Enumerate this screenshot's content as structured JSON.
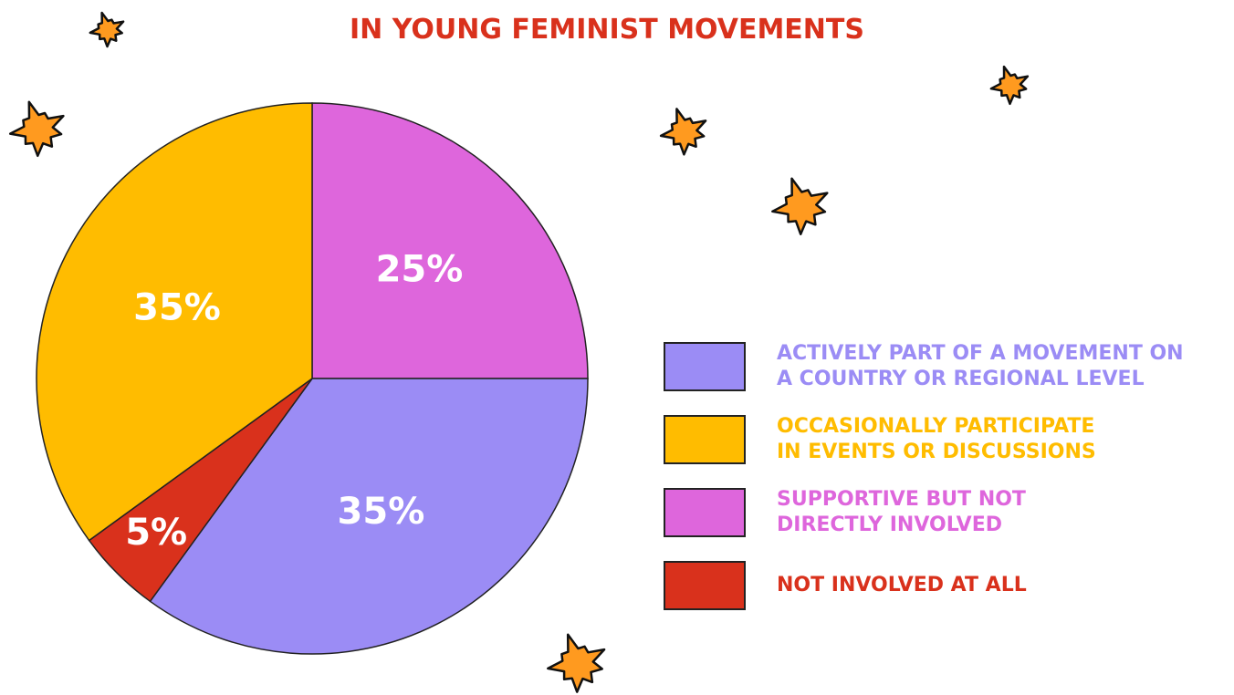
{
  "chart_data": {
    "type": "pie",
    "title": "IN YOUNG FEMINIST MOVEMENTS",
    "categories": [
      "ACTIVELY PART OF A MOVEMENT  ON\nA COUNTRY OR REGIONAL LEVEL",
      "OCCASIONALLY PARTICIPATE\nIN EVENTS OR DISCUSSIONS",
      "SUPPORTIVE BUT NOT\nDIRECTLY INVOLVED",
      "NOT INVOLVED AT ALL"
    ],
    "values": [
      35,
      35,
      25,
      5
    ],
    "value_labels": [
      "35%",
      "35%",
      "25%",
      "5%"
    ],
    "colors": [
      "#9b8cf5",
      "#ffbc00",
      "#de66dc",
      "#d9311c"
    ],
    "legend": "right"
  }
}
